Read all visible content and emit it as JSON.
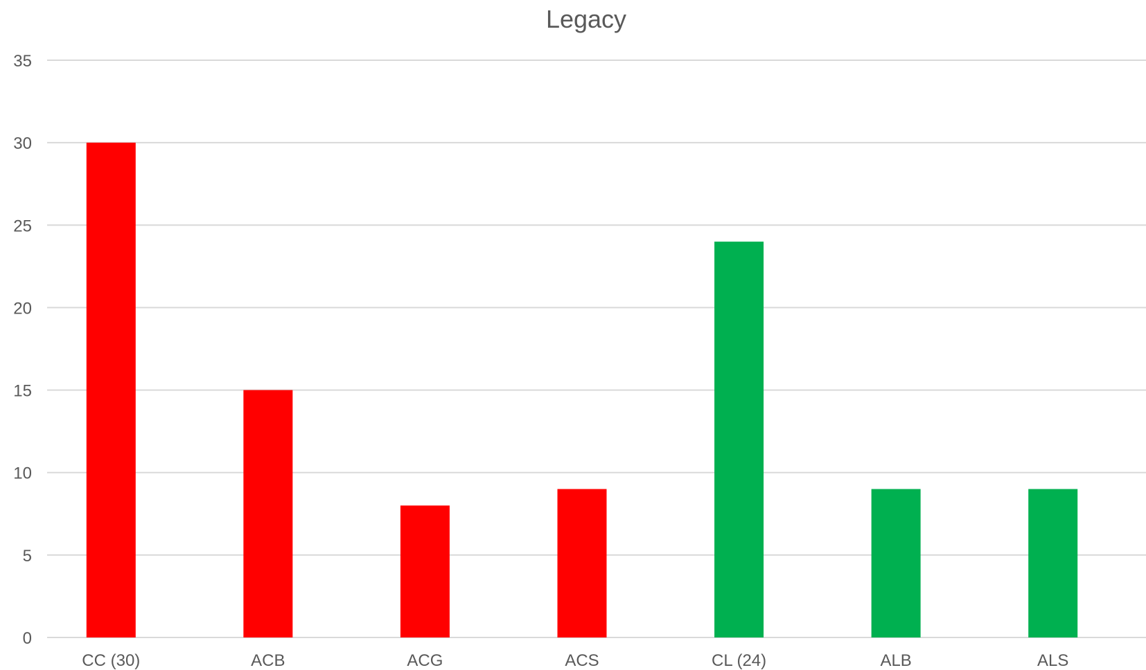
{
  "chart_data": {
    "type": "bar",
    "title": "Legacy",
    "xlabel": "",
    "ylabel": "",
    "categories": [
      "CC (30)",
      "ACB",
      "ACG",
      "ACS",
      "CL (24)",
      "ALB",
      "ALS"
    ],
    "values": [
      30,
      15,
      8,
      9,
      24,
      9,
      9
    ],
    "bar_colors": [
      "#ff0000",
      "#ff0000",
      "#ff0000",
      "#ff0000",
      "#00b050",
      "#00b050",
      "#00b050"
    ],
    "ylim": [
      0,
      35
    ],
    "yticks": [
      0,
      5,
      10,
      15,
      20,
      25,
      30,
      35
    ],
    "grid": true,
    "legend": "none"
  }
}
